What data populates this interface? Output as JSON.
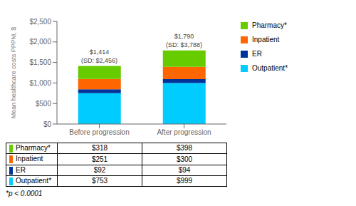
{
  "chart_data": {
    "type": "bar",
    "stacked": true,
    "categories": [
      "Before progression",
      "After progression"
    ],
    "series": [
      {
        "name": "Outpatient*",
        "color": "#00CCFF",
        "values": [
          753,
          999
        ]
      },
      {
        "name": "ER",
        "color": "#003399",
        "values": [
          92,
          94
        ]
      },
      {
        "name": "Inpatient",
        "color": "#FF6600",
        "values": [
          251,
          300
        ]
      },
      {
        "name": "Pharmacy*",
        "color": "#66CC00",
        "values": [
          318,
          398
        ]
      }
    ],
    "y_label": "Mean healthcare costs PPPM, $",
    "ylim": [
      0,
      2500
    ],
    "yticks": [
      {
        "value": 0,
        "label": "$0"
      },
      {
        "value": 500,
        "label": "$500"
      },
      {
        "value": 1000,
        "label": "$1,000"
      },
      {
        "value": 1500,
        "label": "$1,500"
      },
      {
        "value": 2000,
        "label": "$2,000"
      },
      {
        "value": 2500,
        "label": "$2,500"
      }
    ],
    "annotations": [
      {
        "x": "Before progression",
        "y": 1414,
        "text": "$1,414\n(SD: $2,456)"
      },
      {
        "x": "After progression",
        "y": 1790,
        "text": "$1,790\n(SD: $3,788)"
      }
    ],
    "legend": "right",
    "grid": false,
    "table": {
      "rows": [
        "Pharmacy*",
        "Inpatient",
        "ER",
        "Outpatient*"
      ],
      "values": [
        [
          318,
          398
        ],
        [
          251,
          300
        ],
        [
          92,
          94
        ],
        [
          753,
          999
        ]
      ],
      "value_labels": [
        [
          "$318",
          "$398"
        ],
        [
          "$251",
          "$300"
        ],
        [
          "$92",
          "$94"
        ],
        [
          "$753",
          "$999"
        ]
      ]
    },
    "footnote": "*p < 0.0001"
  }
}
